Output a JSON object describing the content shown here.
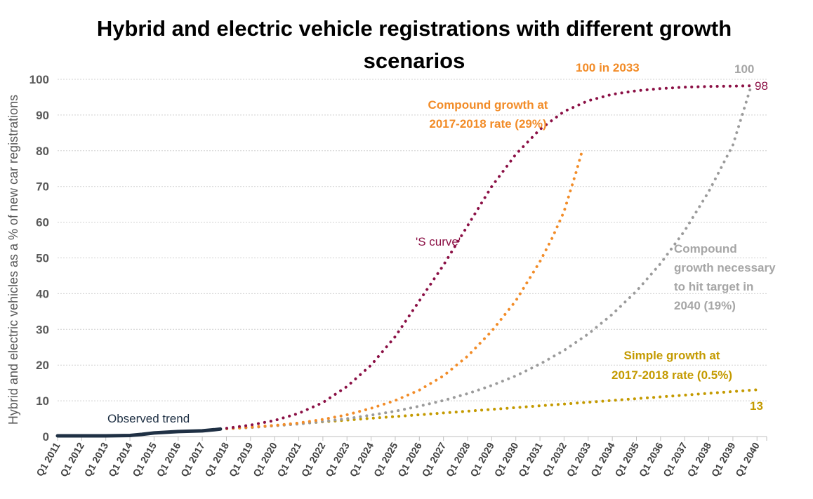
{
  "chart_data": {
    "type": "line",
    "title": "Hybrid and electric vehicle registrations with different growth scenarios",
    "xlabel": "",
    "ylabel": "Hybrid and electric vehicles as a % of new car registrations",
    "ylim": [
      0,
      100
    ],
    "yticks": [
      0,
      10,
      20,
      30,
      40,
      50,
      60,
      70,
      80,
      90,
      100
    ],
    "grid": true,
    "categories": [
      "Q1 2011",
      "Q1 2012",
      "Q1 2013",
      "Q1 2014",
      "Q1 2015",
      "Q1 2016",
      "Q1 2017",
      "Q1 2018",
      "Q1 2019",
      "Q1 2020",
      "Q1 2021",
      "Q1 2022",
      "Q1 2023",
      "Q1 2024",
      "Q1 2025",
      "Q1 2026",
      "Q1 2027",
      "Q1 2028",
      "Q1 2029",
      "Q1 2030",
      "Q1 2031",
      "Q1 2032",
      "Q1 2033",
      "Q1 2034",
      "Q1 2035",
      "Q1 2036",
      "Q1 2037",
      "Q1 2038",
      "Q1 2039",
      "Q1 2040"
    ],
    "series": [
      {
        "name": "Observed trend",
        "style": "solid",
        "color": "#1f3044",
        "x": [
          2011,
          2012,
          2013,
          2014,
          2014.5,
          2015,
          2016,
          2017,
          2017.5,
          2017.75
        ],
        "y": [
          0.2,
          0.2,
          0.2,
          0.3,
          0.6,
          1.0,
          1.4,
          1.6,
          1.9,
          2.1
        ]
      },
      {
        "name": "'S curve'",
        "style": "dotted",
        "color": "#8b1045",
        "end_label": "98",
        "x": [
          2017.75,
          2019,
          2020,
          2021,
          2022,
          2023,
          2024,
          2025,
          2026,
          2027,
          2028,
          2029,
          2030,
          2031,
          2032,
          2033,
          2034,
          2035,
          2036,
          2037,
          2038,
          2039,
          2039.75
        ],
        "y": [
          2.1,
          3.2,
          4.5,
          6.5,
          9.5,
          14,
          20,
          28,
          38,
          48,
          59,
          70,
          79,
          86,
          91,
          94,
          95.8,
          96.8,
          97.4,
          97.8,
          98,
          98.1,
          98.2
        ]
      },
      {
        "name": "Compound growth at 2017-2018 rate (29%)",
        "style": "dotted",
        "color": "#f28c28",
        "end_label": "100 in 2033",
        "x": [
          2017.75,
          2019,
          2020,
          2021,
          2022,
          2023,
          2024,
          2025,
          2026,
          2027,
          2028,
          2029,
          2030,
          2031,
          2031.5,
          2032,
          2032.5,
          2032.75
        ],
        "y": [
          2.1,
          2.6,
          3.1,
          3.8,
          4.8,
          6.1,
          7.9,
          10.1,
          13,
          17,
          22.5,
          29.5,
          38,
          49,
          55.5,
          63,
          74,
          80
        ]
      },
      {
        "name": "Compound growth necessary to hit target in 2040 (19%)",
        "style": "dotted",
        "color": "#9b9b9b",
        "end_label": "100",
        "x": [
          2017.75,
          2019,
          2020,
          2021,
          2022,
          2023,
          2024,
          2025,
          2026,
          2027,
          2028,
          2029,
          2030,
          2031,
          2032,
          2033,
          2034,
          2035,
          2036,
          2037,
          2038,
          2039,
          2039.75
        ],
        "y": [
          2.1,
          2.5,
          3.0,
          3.5,
          4.2,
          5.0,
          6.0,
          7.1,
          8.5,
          10.1,
          12.0,
          14.3,
          17.0,
          20.3,
          24.1,
          28.7,
          34.2,
          40.7,
          48.4,
          57.6,
          68.6,
          81.6,
          98
        ]
      },
      {
        "name": "Simple growth at 2017-2018 rate (0.5%)",
        "style": "dotted",
        "color": "#c49a00",
        "end_label": "13",
        "x": [
          2017.75,
          2019,
          2020,
          2021,
          2022,
          2023,
          2024,
          2025,
          2026,
          2027,
          2028,
          2029,
          2030,
          2031,
          2032,
          2033,
          2034,
          2035,
          2036,
          2037,
          2038,
          2039,
          2040
        ],
        "y": [
          2.1,
          2.6,
          3.1,
          3.6,
          4.1,
          4.6,
          5.1,
          5.6,
          6.1,
          6.6,
          7.1,
          7.6,
          8.1,
          8.6,
          9.1,
          9.6,
          10.1,
          10.6,
          11.1,
          11.6,
          12.1,
          12.6,
          13.1
        ]
      }
    ],
    "annotations": {
      "observed": "Observed trend",
      "s_curve": "'S curve'",
      "compound_29_line1": "Compound growth at",
      "compound_29_line2": "2017-2018 rate (29%)",
      "compound_29_end": "100 in 2033",
      "compound_19_line1": "Compound",
      "compound_19_line2": "growth necessary",
      "compound_19_line3": "to hit target in",
      "compound_19_line4": "2040 (19%)",
      "compound_19_end": "100",
      "s_curve_end": "98",
      "simple_line1": "Simple growth at",
      "simple_line2": "2017-2018 rate (0.5%)",
      "simple_end": "13"
    }
  }
}
